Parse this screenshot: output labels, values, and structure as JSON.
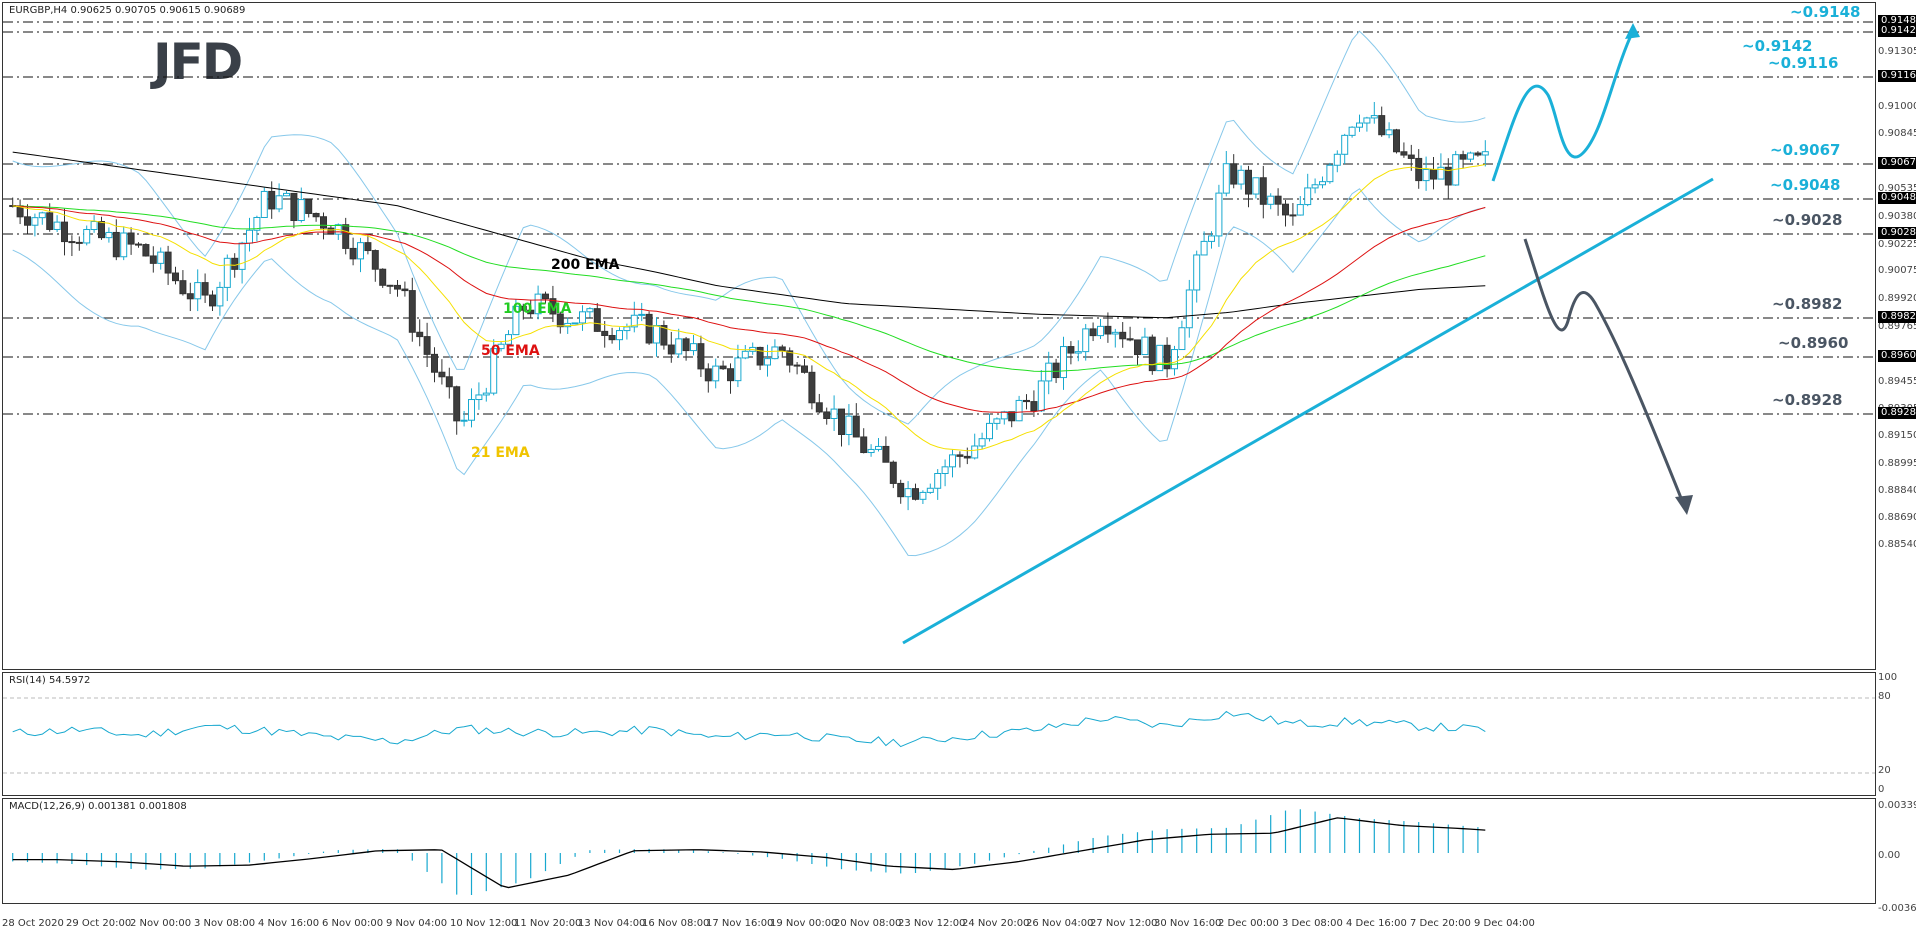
{
  "header": {
    "symbol_line": "EURGBP,H4  0.90625 0.90705 0.90615 0.90689",
    "logo": "JFD"
  },
  "main_axis": {
    "ticks": [
      "0.91305",
      "0.91000",
      "0.90845",
      "0.90535",
      "0.90380",
      "0.90225",
      "0.90075",
      "0.89920",
      "0.89765",
      "0.89455",
      "0.89305",
      "0.89150",
      "0.88995",
      "0.88840",
      "0.88690",
      "0.88540"
    ],
    "tags": [
      "0.91480",
      "0.91420",
      "0.91160",
      "0.90670",
      "0.90480",
      "0.90280",
      "0.89820",
      "0.89600",
      "0.89280"
    ]
  },
  "levels": [
    {
      "label": "~0.9148",
      "price": 0.9148,
      "color": "#1ab0d8"
    },
    {
      "label": "~0.9142",
      "price": 0.9142,
      "color": "#1ab0d8"
    },
    {
      "label": "~0.9116",
      "price": 0.9116,
      "color": "#1ab0d8"
    },
    {
      "label": "~0.9067",
      "price": 0.9067,
      "color": "#1ab0d8"
    },
    {
      "label": "~0.9048",
      "price": 0.9048,
      "color": "#1ab0d8"
    },
    {
      "label": "~0.9028",
      "price": 0.9028,
      "color": "#4a5563"
    },
    {
      "label": "~0.8982",
      "price": 0.8982,
      "color": "#4a5563"
    },
    {
      "label": "~0.8960",
      "price": 0.896,
      "color": "#4a5563"
    },
    {
      "label": "~0.8928",
      "price": 0.8928,
      "color": "#4a5563"
    }
  ],
  "ema_labels": {
    "ema200": "200 EMA",
    "ema100": "100 EMA",
    "ema50": "50 EMA",
    "ema21": "21 EMA"
  },
  "rsi": {
    "title": "RSI(14) 54.5972",
    "ticks": [
      "100",
      "80",
      "20",
      "0"
    ]
  },
  "macd": {
    "title": "MACD(12,26,9) 0.001381 0.001808",
    "ticks": [
      "0.003391",
      "0.00",
      "-0.003636"
    ]
  },
  "x_axis": [
    "28 Oct 2020",
    "29 Oct 20:00",
    "2 Nov 00:00",
    "3 Nov 08:00",
    "4 Nov 16:00",
    "6 Nov 00:00",
    "9 Nov 04:00",
    "10 Nov 12:00",
    "11 Nov 20:00",
    "13 Nov 04:00",
    "16 Nov 08:00",
    "17 Nov 16:00",
    "19 Nov 00:00",
    "20 Nov 08:00",
    "23 Nov 12:00",
    "24 Nov 20:00",
    "26 Nov 04:00",
    "27 Nov 12:00",
    "30 Nov 16:00",
    "2 Dec 00:00",
    "3 Dec 08:00",
    "4 Dec 16:00",
    "7 Dec 20:00",
    "9 Dec 04:00"
  ],
  "chart_data": {
    "type": "line",
    "title": "EURGBP,H4",
    "ohlc_last": {
      "open": 0.90625,
      "high": 0.90705,
      "low": 0.90615,
      "close": 0.90689
    },
    "x": [
      "28 Oct 2020",
      "29 Oct 20:00",
      "2 Nov 00:00",
      "3 Nov 08:00",
      "4 Nov 16:00",
      "6 Nov 00:00",
      "9 Nov 04:00",
      "10 Nov 12:00",
      "11 Nov 20:00",
      "13 Nov 04:00",
      "16 Nov 08:00",
      "17 Nov 16:00",
      "19 Nov 00:00",
      "20 Nov 08:00",
      "23 Nov 12:00",
      "24 Nov 20:00",
      "26 Nov 04:00",
      "27 Nov 12:00",
      "30 Nov 16:00",
      "2 Dec 00:00",
      "3 Dec 08:00",
      "4 Dec 16:00",
      "7 Dec 20:00",
      "9 Dec 04:00"
    ],
    "series": [
      {
        "name": "Close (approx)",
        "values": [
          0.9045,
          0.903,
          0.902,
          0.899,
          0.905,
          0.9035,
          0.9,
          0.892,
          0.899,
          0.898,
          0.8975,
          0.895,
          0.8965,
          0.892,
          0.8885,
          0.891,
          0.894,
          0.8985,
          0.8955,
          0.9065,
          0.9035,
          0.91,
          0.906,
          0.9069
        ]
      },
      {
        "name": "200 EMA",
        "values": [
          0.9075,
          0.907,
          0.9065,
          0.906,
          0.9055,
          0.905,
          0.9045,
          0.9035,
          0.9025,
          0.9015,
          0.9008,
          0.9,
          0.8995,
          0.899,
          0.8988,
          0.8986,
          0.8984,
          0.8983,
          0.8982,
          0.8985,
          0.899,
          0.8994,
          0.8998,
          0.9
        ]
      }
    ],
    "ylim": [
      0.8854,
      0.915
    ],
    "horizontal_levels": [
      0.9148,
      0.9142,
      0.9116,
      0.9067,
      0.9048,
      0.9028,
      0.8982,
      0.896,
      0.8928
    ],
    "indicators": [
      "21 EMA",
      "50 EMA",
      "100 EMA",
      "200 EMA",
      "Bollinger Bands",
      "RSI(14) 54.5972",
      "MACD(12,26,9) 0.001381 0.001808"
    ],
    "annotations": [
      "Uptrend line from 23 Nov low",
      "Bullish scenario arrow to ~0.9148",
      "Bearish scenario arrow to ~0.8928"
    ]
  }
}
